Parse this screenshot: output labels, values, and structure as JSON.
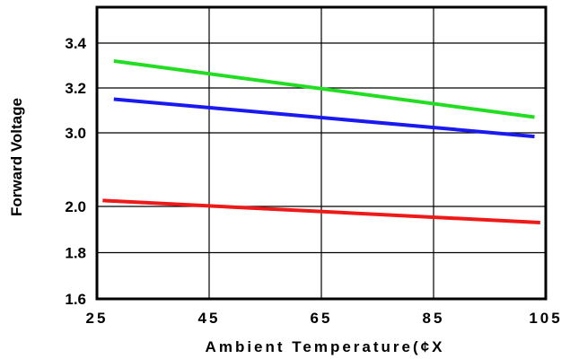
{
  "chart_data": {
    "type": "line",
    "title": "",
    "xlabel": "Ambient Temperature(¢X",
    "ylabel": "Forward Voltage",
    "xlim": [
      25,
      105
    ],
    "x_ticks": [
      25,
      45,
      65,
      85,
      105
    ],
    "x_tick_labels": [
      "25",
      "45",
      "65",
      "85",
      "105"
    ],
    "y_ticks": [
      1.6,
      1.8,
      2.0,
      3.0,
      3.2,
      3.4
    ],
    "y_tick_labels": [
      "1.6",
      "1.8",
      "2.0",
      "3.0",
      "3.2",
      "3.4"
    ],
    "y_scale": "piecewise: 1.6-2.0 and 3.0-3.4 on equal spacing, axis break between 2.0 and 3.0",
    "grid": true,
    "legend": "none",
    "series": [
      {
        "color": "#22dd22",
        "x": [
          28,
          103
        ],
        "y": [
          3.32,
          3.07
        ]
      },
      {
        "color": "#1a1aee",
        "x": [
          28,
          103
        ],
        "y": [
          3.15,
          2.95
        ]
      },
      {
        "color": "#ee1a1a",
        "x": [
          26,
          104
        ],
        "y": [
          2.08,
          1.93
        ]
      }
    ]
  }
}
